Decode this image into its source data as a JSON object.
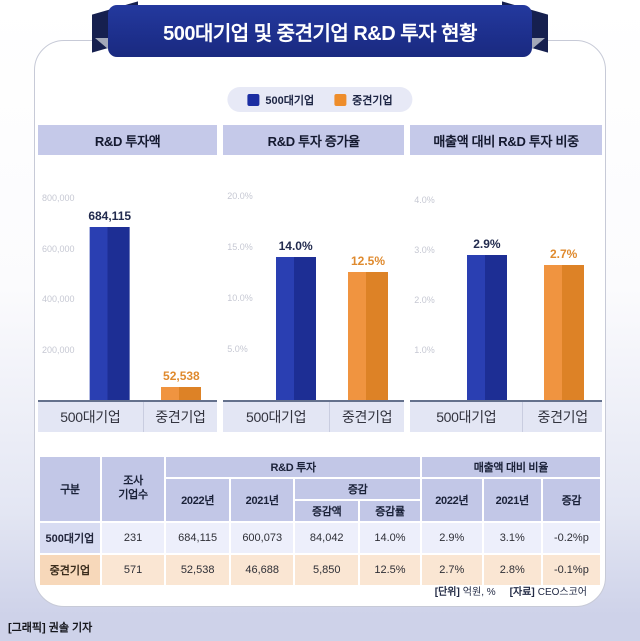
{
  "page": {
    "title": "500대기업 및 중견기업 R&D 투자 현황",
    "credit": "[그래픽] 권솔 기자",
    "footnote": {
      "unit_label": "[단위]",
      "unit_value": "억원, %",
      "source_label": "[자료]",
      "source_value": "CEO스코어"
    },
    "colors": {
      "banner_blue": "#1d2f8c",
      "series_blue": "#1d2e94",
      "series_orange": "#ee8d2b",
      "header_lavender": "#c5c9e9",
      "row_blue_bg": "#edeffb",
      "row_orange_bg": "#fae6d3"
    }
  },
  "legend": {
    "items": [
      {
        "label": "500대기업",
        "color": "#1b2da2"
      },
      {
        "label": "중견기업",
        "color": "#ee8d2b"
      }
    ],
    "position": "top"
  },
  "chart_data": [
    {
      "type": "bar",
      "title": "R&D 투자액",
      "categories": [
        "500대기업",
        "중견기업"
      ],
      "values": [
        684115,
        52538
      ],
      "value_labels": [
        "684,115",
        "52,538"
      ],
      "series_colors": [
        "#1d2e94",
        "#ee8d2b"
      ],
      "ylabel": "억원",
      "ymax": 920000,
      "grid": false,
      "yticks": [
        {
          "value": 200000,
          "label": "200,000"
        },
        {
          "value": 400000,
          "label": "400,000"
        },
        {
          "value": 600000,
          "label": "600,000"
        },
        {
          "value": 800000,
          "label": "800,000"
        }
      ]
    },
    {
      "type": "bar",
      "title": "R&D 투자 증가율",
      "categories": [
        "500대기업",
        "중견기업"
      ],
      "values": [
        14.0,
        12.5
      ],
      "value_labels": [
        "14.0%",
        "12.5%"
      ],
      "series_colors": [
        "#1d2e94",
        "#ee8d2b"
      ],
      "ylabel": "%",
      "ymax": 22.7,
      "grid": false,
      "yticks": [
        {
          "value": 5,
          "label": "5.0%"
        },
        {
          "value": 10,
          "label": "10.0%"
        },
        {
          "value": 15,
          "label": "15.0%"
        },
        {
          "value": 20,
          "label": "20.0%"
        }
      ]
    },
    {
      "type": "bar",
      "title": "매출액 대비 R&D 투자 비중",
      "categories": [
        "500대기업",
        "중견기업"
      ],
      "values": [
        2.9,
        2.7
      ],
      "value_labels": [
        "2.9%",
        "2.7%"
      ],
      "series_colors": [
        "#1d2e94",
        "#ee8d2b"
      ],
      "ylabel": "%",
      "ymax": 4.64,
      "grid": false,
      "yticks": [
        {
          "value": 1,
          "label": "1.0%"
        },
        {
          "value": 2,
          "label": "2.0%"
        },
        {
          "value": 3,
          "label": "3.0%"
        },
        {
          "value": 4,
          "label": "4.0%"
        }
      ]
    }
  ],
  "table": {
    "headers": {
      "col_group": "구분",
      "col_count": "조사\n기업수",
      "group_rnd": "R&D 투자",
      "group_ratio": "매출액 대비 비율",
      "rnd_2022": "2022년",
      "rnd_2021": "2021년",
      "delta_group": "증감",
      "delta_amount": "증감액",
      "delta_rate": "증감률",
      "ratio_2022": "2022년",
      "ratio_2021": "2021년",
      "ratio_delta": "증감"
    },
    "rows": [
      {
        "label": "500대기업",
        "count": "231",
        "rnd_2022": "684,115",
        "rnd_2021": "600,073",
        "delta_amount": "84,042",
        "delta_rate": "14.0%",
        "ratio_2022": "2.9%",
        "ratio_2021": "3.1%",
        "ratio_delta": "-0.2%p"
      },
      {
        "label": "중견기업",
        "count": "571",
        "rnd_2022": "52,538",
        "rnd_2021": "46,688",
        "delta_amount": "5,850",
        "delta_rate": "12.5%",
        "ratio_2022": "2.7%",
        "ratio_2021": "2.8%",
        "ratio_delta": "-0.1%p"
      }
    ]
  }
}
